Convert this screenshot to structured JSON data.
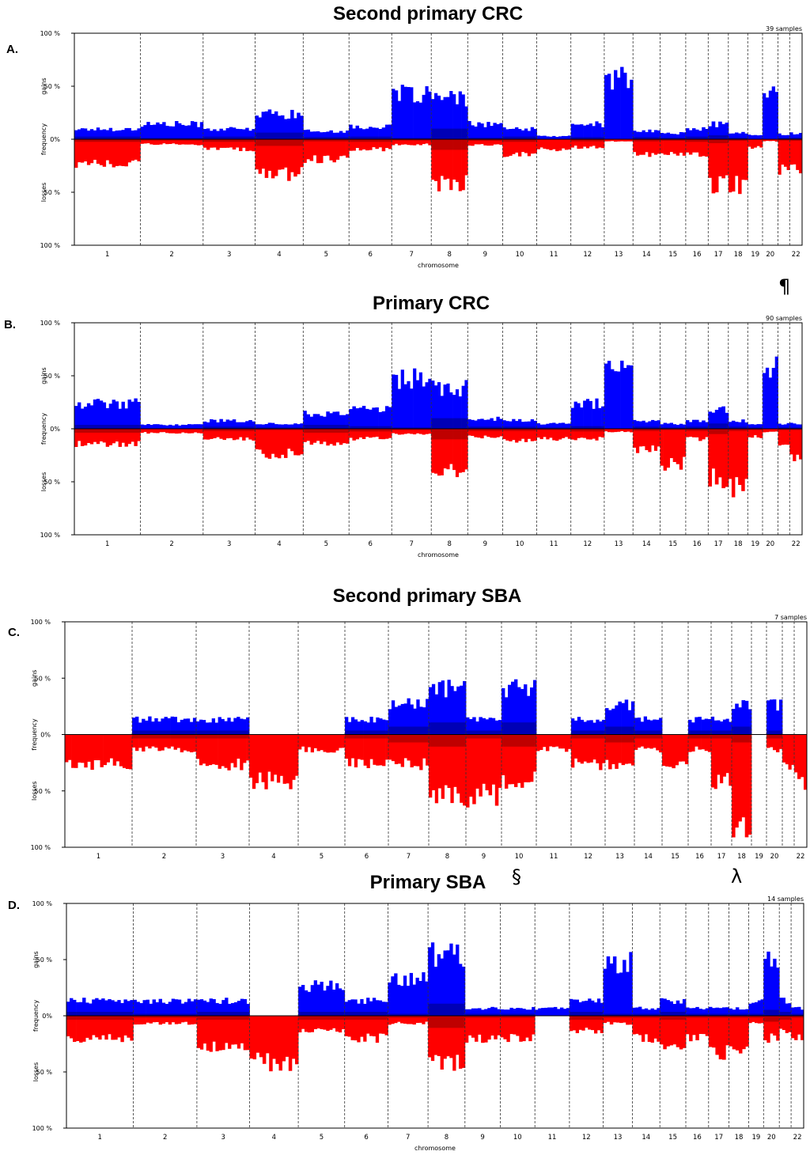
{
  "symbols": {
    "pilcrow": "¶",
    "section": "§",
    "lambda": "λ"
  },
  "colors": {
    "gain": "#0000FF",
    "loss": "#FF0000",
    "gain_overlap": "#00007A",
    "loss_overlap": "#8B0000"
  },
  "chart_data": [
    {
      "panel_label": "A.",
      "title": "Second primary CRC",
      "samples_label": "39 samples",
      "type": "area",
      "xlabel": "chromosome",
      "ylabel_upper": "gains",
      "ylabel_mid": "frequency",
      "ylabel_lower": "losses",
      "yticks": [
        "100 %",
        "50 %",
        "0%",
        "50 %",
        "100 %"
      ],
      "ylim": [
        -100,
        100
      ],
      "chromosomes": [
        "1",
        "2",
        "3",
        "4",
        "5",
        "6",
        "7",
        "8",
        "9",
        "10",
        "11",
        "12",
        "13",
        "14",
        "15",
        "16",
        "17",
        "18",
        "19",
        "20",
        "",
        "22"
      ],
      "gains": [
        10,
        15,
        10,
        25,
        8,
        12,
        45,
        40,
        15,
        10,
        3,
        15,
        60,
        8,
        6,
        10,
        15,
        6,
        4,
        45,
        5,
        6
      ],
      "losses": [
        25,
        5,
        10,
        35,
        20,
        10,
        5,
        45,
        6,
        15,
        10,
        8,
        2,
        15,
        15,
        15,
        45,
        45,
        8,
        2,
        30,
        30
      ]
    },
    {
      "panel_label": "B.",
      "title": "Primary CRC",
      "samples_label": "90 samples",
      "type": "area",
      "xlabel": "chromosome",
      "ylabel_upper": "gains",
      "ylabel_mid": "frequency",
      "ylabel_lower": "losses",
      "yticks": [
        "100 %",
        "50 %",
        "0%",
        "50 %",
        "100 %"
      ],
      "ylim": [
        -100,
        100
      ],
      "chromosomes": [
        "1",
        "2",
        "3",
        "4",
        "5",
        "6",
        "7",
        "8",
        "9",
        "10",
        "11",
        "12",
        "13",
        "14",
        "15",
        "16",
        "17",
        "18",
        "19",
        "20",
        "",
        "22"
      ],
      "gains": [
        25,
        4,
        8,
        5,
        15,
        20,
        50,
        40,
        10,
        8,
        5,
        25,
        60,
        8,
        5,
        8,
        20,
        8,
        5,
        60,
        5,
        5
      ],
      "losses": [
        15,
        4,
        10,
        25,
        15,
        10,
        5,
        40,
        8,
        12,
        10,
        10,
        3,
        20,
        35,
        10,
        50,
        60,
        8,
        3,
        15,
        30
      ]
    },
    {
      "panel_label": "C.",
      "title": "Second primary SBA",
      "samples_label": "7 samples",
      "type": "area",
      "xlabel": "",
      "ylabel_upper": "gains",
      "ylabel_mid": "frequency",
      "ylabel_lower": "losses",
      "yticks": [
        "100 %",
        "50 %",
        "0%",
        "50 %",
        "100 %"
      ],
      "ylim": [
        -100,
        100
      ],
      "chromosomes": [
        "1",
        "2",
        "3",
        "4",
        "5",
        "6",
        "7",
        "8",
        "9",
        "10",
        "11",
        "12",
        "13",
        "14",
        "15",
        "16",
        "17",
        "18",
        "19",
        "20",
        "",
        "22"
      ],
      "gains": [
        0,
        14,
        14,
        0,
        0,
        14,
        28,
        43,
        14,
        43,
        0,
        14,
        28,
        14,
        0,
        14,
        14,
        28,
        0,
        28,
        0,
        0
      ],
      "losses": [
        28,
        14,
        28,
        43,
        14,
        28,
        28,
        57,
        57,
        43,
        14,
        28,
        28,
        14,
        28,
        14,
        43,
        86,
        0,
        14,
        28,
        43
      ]
    },
    {
      "panel_label": "D.",
      "title": "Primary SBA",
      "samples_label": "14 samples",
      "type": "area",
      "xlabel": "chromosome",
      "ylabel_upper": "gains",
      "ylabel_mid": "frequency",
      "ylabel_lower": "losses",
      "yticks": [
        "100 %",
        "50 %",
        "0%",
        "50 %",
        "100 %"
      ],
      "ylim": [
        -100,
        100
      ],
      "chromosomes": [
        "1",
        "2",
        "3",
        "4",
        "5",
        "6",
        "7",
        "8",
        "9",
        "10",
        "11",
        "12",
        "13",
        "14",
        "15",
        "16",
        "17",
        "18",
        "19",
        "20",
        "",
        "22"
      ],
      "gains": [
        14,
        14,
        14,
        0,
        28,
        14,
        35,
        57,
        7,
        7,
        7,
        14,
        50,
        7,
        14,
        7,
        7,
        7,
        14,
        50,
        14,
        7
      ],
      "losses": [
        21,
        7,
        28,
        43,
        14,
        21,
        7,
        43,
        21,
        21,
        0,
        14,
        7,
        21,
        28,
        21,
        35,
        35,
        7,
        21,
        14,
        21
      ]
    }
  ]
}
